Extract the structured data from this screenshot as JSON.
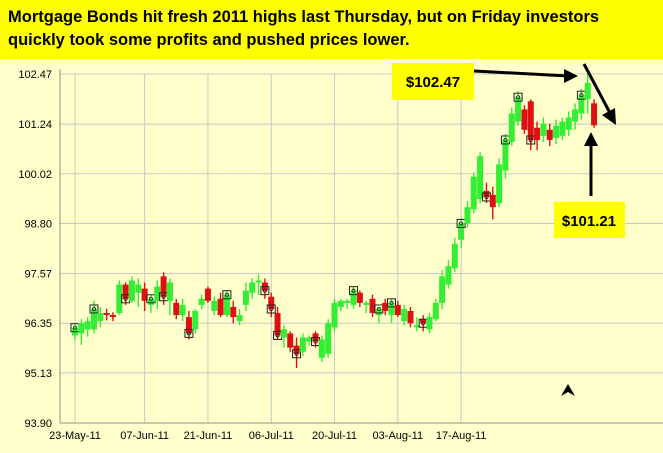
{
  "headline": "Mortgage Bonds hit fresh 2011 highs last Thursday, but on Friday investors quickly took some profits and pushed prices lower.",
  "colors": {
    "background": "#FFFFCC",
    "headline_background": "#FFFF00",
    "up_candle": "#33EE33",
    "down_candle": "#DD1111",
    "grid": "#C8C8C8",
    "callout_background": "#FFFF00"
  },
  "chart_data": {
    "type": "candlestick",
    "title": "Mortgage Bonds hit fresh 2011 highs last Thursday, but on Friday investors quickly took some profits and pushed prices lower.",
    "y_ticks": [
      "102.47",
      "101.24",
      "100.02",
      "98.80",
      "97.57",
      "96.35",
      "95.13",
      "93.90"
    ],
    "x_ticks": [
      "23-May-11",
      "07-Jun-11",
      "21-Jun-11",
      "06-Jul-11",
      "20-Jul-11",
      "03-Aug-11",
      "17-Aug-11"
    ],
    "ylim": [
      93.9,
      102.47
    ],
    "grid": true,
    "callouts": [
      {
        "label": "$102.47",
        "value": 102.47
      },
      {
        "label": "$101.21",
        "value": 101.21
      }
    ],
    "candles": [
      {
        "date": "23-May-11",
        "open": 96.05,
        "high": 96.32,
        "low": 95.93,
        "close": 96.24,
        "marked": true
      },
      {
        "date": "24-May-11",
        "open": 96.1,
        "high": 96.45,
        "low": 95.82,
        "close": 96.35
      },
      {
        "date": "25-May-11",
        "open": 96.2,
        "high": 96.5,
        "low": 96.02,
        "close": 96.4
      },
      {
        "date": "26-May-11",
        "open": 96.2,
        "high": 96.9,
        "low": 96.1,
        "close": 96.7,
        "marked": true
      },
      {
        "date": "27-May-11",
        "open": 96.4,
        "high": 96.75,
        "low": 96.25,
        "close": 96.6
      },
      {
        "date": "30-May-11",
        "open": 96.6,
        "high": 96.7,
        "low": 96.42,
        "close": 96.55
      },
      {
        "date": "31-May-11",
        "open": 96.55,
        "high": 96.62,
        "low": 96.4,
        "close": 96.5
      },
      {
        "date": "01-Jun-11",
        "open": 96.6,
        "high": 97.4,
        "low": 96.55,
        "close": 97.3
      },
      {
        "date": "02-Jun-11",
        "open": 97.3,
        "high": 97.35,
        "low": 96.8,
        "close": 96.95,
        "marked": true
      },
      {
        "date": "03-Jun-11",
        "open": 96.9,
        "high": 97.5,
        "low": 96.85,
        "close": 97.4
      },
      {
        "date": "06-Jun-11",
        "open": 97.1,
        "high": 97.45,
        "low": 96.75,
        "close": 97.3
      },
      {
        "date": "07-Jun-11",
        "open": 97.2,
        "high": 97.35,
        "low": 96.65,
        "close": 96.9
      },
      {
        "date": "08-Jun-11",
        "open": 96.8,
        "high": 97.05,
        "low": 96.6,
        "close": 96.95,
        "marked": true
      },
      {
        "date": "09-Jun-11",
        "open": 96.9,
        "high": 97.4,
        "low": 96.7,
        "close": 97.25
      },
      {
        "date": "10-Jun-11",
        "open": 97.5,
        "high": 97.6,
        "low": 96.8,
        "close": 97.0,
        "marked": true
      },
      {
        "date": "13-Jun-11",
        "open": 96.9,
        "high": 97.45,
        "low": 96.55,
        "close": 97.35
      },
      {
        "date": "14-Jun-11",
        "open": 96.85,
        "high": 96.95,
        "low": 96.45,
        "close": 96.55
      },
      {
        "date": "15-Jun-11",
        "open": 96.55,
        "high": 96.95,
        "low": 96.4,
        "close": 96.8
      },
      {
        "date": "16-Jun-11",
        "open": 96.5,
        "high": 96.65,
        "low": 95.95,
        "close": 96.1,
        "marked": true
      },
      {
        "date": "17-Jun-11",
        "open": 96.2,
        "high": 96.7,
        "low": 96.1,
        "close": 96.65
      },
      {
        "date": "20-Jun-11",
        "open": 96.8,
        "high": 97.05,
        "low": 96.7,
        "close": 96.95
      },
      {
        "date": "21-Jun-11",
        "open": 97.2,
        "high": 97.25,
        "low": 96.85,
        "close": 96.9
      },
      {
        "date": "22-Jun-11",
        "open": 96.65,
        "high": 97.0,
        "low": 96.55,
        "close": 96.9
      },
      {
        "date": "23-Jun-11",
        "open": 96.95,
        "high": 97.1,
        "low": 96.5,
        "close": 96.55
      },
      {
        "date": "24-Jun-11",
        "open": 96.55,
        "high": 97.15,
        "low": 96.5,
        "close": 97.05,
        "marked": true
      },
      {
        "date": "27-Jun-11",
        "open": 96.75,
        "high": 96.9,
        "low": 96.35,
        "close": 96.5
      },
      {
        "date": "28-Jun-11",
        "open": 96.4,
        "high": 96.7,
        "low": 96.3,
        "close": 96.55
      },
      {
        "date": "29-Jun-11",
        "open": 96.8,
        "high": 97.35,
        "low": 96.65,
        "close": 97.15
      },
      {
        "date": "30-Jun-11",
        "open": 97.1,
        "high": 97.45,
        "low": 96.95,
        "close": 97.35
      },
      {
        "date": "01-Jul-11",
        "open": 97.35,
        "high": 97.55,
        "low": 97.05,
        "close": 97.4
      },
      {
        "date": "05-Jul-11",
        "open": 97.35,
        "high": 97.45,
        "low": 96.95,
        "close": 97.15,
        "marked": true
      },
      {
        "date": "06-Jul-11",
        "open": 97.0,
        "high": 97.1,
        "low": 96.5,
        "close": 96.7,
        "marked": true
      },
      {
        "date": "07-Jul-11",
        "open": 96.6,
        "high": 96.75,
        "low": 95.95,
        "close": 96.05,
        "marked": true
      },
      {
        "date": "08-Jul-11",
        "open": 96.0,
        "high": 96.3,
        "low": 95.75,
        "close": 96.2
      },
      {
        "date": "11-Jul-11",
        "open": 96.1,
        "high": 96.15,
        "low": 95.65,
        "close": 95.75
      },
      {
        "date": "12-Jul-11",
        "open": 95.8,
        "high": 96.0,
        "low": 95.25,
        "close": 95.6,
        "marked": true
      },
      {
        "date": "13-Jul-11",
        "open": 95.65,
        "high": 96.1,
        "low": 95.55,
        "close": 96.0
      },
      {
        "date": "14-Jul-11",
        "open": 95.9,
        "high": 96.05,
        "low": 95.8,
        "close": 96.0
      },
      {
        "date": "15-Jul-11",
        "open": 96.1,
        "high": 96.15,
        "low": 95.75,
        "close": 95.9,
        "marked": true
      },
      {
        "date": "18-Jul-11",
        "open": 95.5,
        "high": 96.05,
        "low": 95.4,
        "close": 95.95
      },
      {
        "date": "19-Jul-11",
        "open": 95.6,
        "high": 96.45,
        "low": 95.5,
        "close": 96.35
      },
      {
        "date": "20-Jul-11",
        "open": 96.25,
        "high": 96.95,
        "low": 96.15,
        "close": 96.85
      },
      {
        "date": "21-Jul-11",
        "open": 96.75,
        "high": 96.95,
        "low": 96.65,
        "close": 96.9
      },
      {
        "date": "22-Jul-11",
        "open": 96.85,
        "high": 96.95,
        "low": 96.7,
        "close": 96.9
      },
      {
        "date": "25-Jul-11",
        "open": 96.8,
        "high": 97.25,
        "low": 96.7,
        "close": 97.15,
        "marked": true
      },
      {
        "date": "26-Jul-11",
        "open": 97.1,
        "high": 97.15,
        "low": 96.75,
        "close": 96.85
      },
      {
        "date": "27-Jul-11",
        "open": 96.8,
        "high": 96.9,
        "low": 96.6,
        "close": 96.85
      },
      {
        "date": "28-Jul-11",
        "open": 96.95,
        "high": 97.05,
        "low": 96.5,
        "close": 96.6
      },
      {
        "date": "29-Jul-11",
        "open": 96.55,
        "high": 96.75,
        "low": 96.35,
        "close": 96.7,
        "marked": true
      },
      {
        "date": "01-Aug-11",
        "open": 96.85,
        "high": 96.95,
        "low": 96.55,
        "close": 96.65
      },
      {
        "date": "02-Aug-11",
        "open": 96.55,
        "high": 96.95,
        "low": 96.35,
        "close": 96.85,
        "marked": true
      },
      {
        "date": "03-Aug-11",
        "open": 96.8,
        "high": 96.9,
        "low": 96.5,
        "close": 96.55
      },
      {
        "date": "04-Aug-11",
        "open": 96.4,
        "high": 96.8,
        "low": 96.3,
        "close": 96.7
      },
      {
        "date": "05-Aug-11",
        "open": 96.65,
        "high": 96.75,
        "low": 96.25,
        "close": 96.35
      },
      {
        "date": "08-Aug-11",
        "open": 96.3,
        "high": 96.5,
        "low": 96.15,
        "close": 96.3
      },
      {
        "date": "09-Aug-11",
        "open": 96.45,
        "high": 96.55,
        "low": 96.15,
        "close": 96.35,
        "marked": true
      },
      {
        "date": "10-Aug-11",
        "open": 96.2,
        "high": 96.6,
        "low": 96.1,
        "close": 96.5
      },
      {
        "date": "11-Aug-11",
        "open": 96.45,
        "high": 96.95,
        "low": 96.4,
        "close": 96.85
      },
      {
        "date": "12-Aug-11",
        "open": 96.85,
        "high": 97.65,
        "low": 96.7,
        "close": 97.5
      },
      {
        "date": "15-Aug-11",
        "open": 97.3,
        "high": 97.9,
        "low": 97.2,
        "close": 97.75
      },
      {
        "date": "16-Aug-11",
        "open": 97.7,
        "high": 98.45,
        "low": 97.6,
        "close": 98.3
      },
      {
        "date": "17-Aug-11",
        "open": 98.4,
        "high": 98.95,
        "low": 98.2,
        "close": 98.8,
        "marked": true
      },
      {
        "date": "18-Aug-11",
        "open": 98.8,
        "high": 99.35,
        "low": 98.7,
        "close": 99.2
      },
      {
        "date": "19-Aug-11",
        "open": 99.15,
        "high": 100.05,
        "low": 99.05,
        "close": 99.95
      },
      {
        "date": "22-Aug-11",
        "open": 99.4,
        "high": 100.55,
        "low": 99.3,
        "close": 100.45
      },
      {
        "date": "23-Aug-11",
        "open": 99.6,
        "high": 99.8,
        "low": 99.3,
        "close": 99.45,
        "marked": true
      },
      {
        "date": "24-Aug-11",
        "open": 99.5,
        "high": 99.7,
        "low": 98.9,
        "close": 99.2
      },
      {
        "date": "25-Aug-11",
        "open": 99.3,
        "high": 100.4,
        "low": 99.2,
        "close": 100.25
      },
      {
        "date": "26-Aug-11",
        "open": 100.1,
        "high": 101.0,
        "low": 99.9,
        "close": 100.85,
        "marked": true
      },
      {
        "date": "29-Aug-11",
        "open": 100.8,
        "high": 101.65,
        "low": 100.7,
        "close": 101.5
      },
      {
        "date": "30-Aug-11",
        "open": 101.3,
        "high": 102.05,
        "low": 101.2,
        "close": 101.9,
        "marked": true
      },
      {
        "date": "31-Aug-11",
        "open": 101.6,
        "high": 101.7,
        "low": 101.0,
        "close": 101.1
      },
      {
        "date": "01-Sep-11",
        "open": 101.8,
        "high": 101.85,
        "low": 100.6,
        "close": 100.85,
        "marked": true
      },
      {
        "date": "02-Sep-11",
        "open": 101.15,
        "high": 101.3,
        "low": 100.6,
        "close": 100.85
      },
      {
        "date": "06-Sep-11",
        "open": 100.95,
        "high": 101.4,
        "low": 100.8,
        "close": 101.25
      },
      {
        "date": "07-Sep-11",
        "open": 101.1,
        "high": 101.25,
        "low": 100.7,
        "close": 100.85
      },
      {
        "date": "08-Sep-11",
        "open": 100.9,
        "high": 101.35,
        "low": 100.75,
        "close": 101.2
      },
      {
        "date": "09-Sep-11",
        "open": 100.95,
        "high": 101.4,
        "low": 100.85,
        "close": 101.3
      },
      {
        "date": "12-Sep-11",
        "open": 101.1,
        "high": 101.55,
        "low": 100.95,
        "close": 101.4
      },
      {
        "date": "13-Sep-11",
        "open": 101.3,
        "high": 101.75,
        "low": 101.1,
        "close": 101.6
      },
      {
        "date": "14-Sep-11",
        "open": 101.5,
        "high": 102.1,
        "low": 101.35,
        "close": 101.95,
        "marked": true
      },
      {
        "date": "15-Sep-11",
        "open": 101.85,
        "high": 102.47,
        "low": 101.5,
        "close": 102.25
      },
      {
        "date": "16-Sep-11",
        "open": 101.75,
        "high": 101.85,
        "low": 101.15,
        "close": 101.21
      }
    ]
  }
}
